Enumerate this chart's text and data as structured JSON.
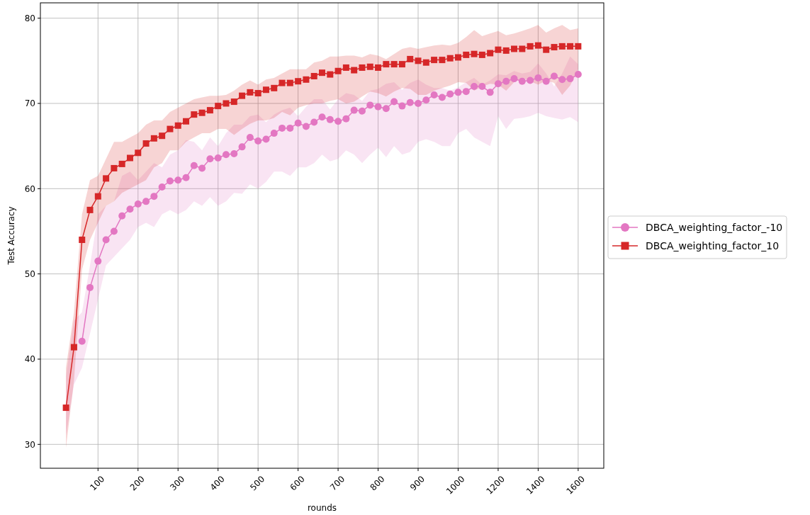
{
  "chart_data": {
    "type": "line",
    "xlabel": "rounds",
    "ylabel": "Test Accuracy",
    "categories": [
      null,
      null,
      null,
      null,
      "100",
      null,
      null,
      null,
      null,
      "200",
      null,
      null,
      null,
      null,
      "300",
      null,
      null,
      null,
      null,
      "400",
      null,
      null,
      null,
      null,
      "500",
      null,
      null,
      null,
      null,
      "600",
      null,
      null,
      null,
      null,
      "700",
      null,
      null,
      null,
      null,
      "800",
      null,
      null,
      null,
      null,
      "900",
      null,
      null,
      null,
      null,
      "1000",
      null,
      null,
      null,
      null,
      "1200",
      null,
      null,
      null,
      null,
      "1400",
      null,
      null,
      null,
      null,
      "1600"
    ],
    "ylim": [
      27.2,
      81.8
    ],
    "yticks": [
      30,
      40,
      50,
      60,
      70,
      80
    ],
    "grid": true,
    "legend": "right",
    "series": [
      {
        "name": "DBCA_weighting_factor_-10",
        "color": "#e377c2",
        "marker": "circle",
        "values": [
          null,
          null,
          42.1,
          48.4,
          51.5,
          54.0,
          55.0,
          56.8,
          57.6,
          58.2,
          58.5,
          59.1,
          60.2,
          60.9,
          61.0,
          61.3,
          62.7,
          62.4,
          63.5,
          63.6,
          64.0,
          64.1,
          64.9,
          66.0,
          65.6,
          65.8,
          66.5,
          67.1,
          67.1,
          67.7,
          67.3,
          67.8,
          68.4,
          68.1,
          67.9,
          68.2,
          69.2,
          69.1,
          69.8,
          69.6,
          69.4,
          70.2,
          69.7,
          70.1,
          70.0,
          70.4,
          71.0,
          70.7,
          71.1,
          71.3,
          71.4,
          72.0,
          72.0,
          71.3,
          72.3,
          72.6,
          72.9,
          72.6,
          72.7,
          73.0,
          72.6,
          73.2,
          72.8,
          72.9,
          73.4
        ],
        "lower": [
          31,
          37,
          39,
          43,
          47,
          51,
          52,
          53,
          54,
          55.5,
          56,
          55.5,
          57,
          57.5,
          57,
          57.5,
          58.5,
          58,
          59,
          58,
          58.5,
          59.5,
          59.4,
          60.5,
          60,
          60.8,
          62,
          62,
          61.5,
          62.5,
          62.5,
          63,
          64,
          63.2,
          63.5,
          64.5,
          64,
          63,
          64,
          64.8,
          63.7,
          65,
          64,
          64.3,
          65.5,
          65.8,
          65.5,
          65,
          65,
          66.5,
          67,
          66,
          65.5,
          65,
          68.5,
          67,
          68.2,
          68.3,
          68.5,
          68.9,
          68.5,
          68.3,
          68.1,
          68.4,
          67.8
        ],
        "upper": [
          38,
          44.5,
          45.5,
          51,
          57,
          58,
          58.5,
          61.5,
          62,
          61,
          62,
          63,
          62.5,
          64,
          64.5,
          65.7,
          65.5,
          64.5,
          66,
          65,
          66.5,
          67.5,
          67.5,
          68.5,
          68.7,
          67.8,
          68.7,
          69.2,
          69.5,
          68.5,
          69.6,
          70.5,
          70.5,
          69.3,
          70.5,
          71.2,
          71,
          70.3,
          71.5,
          71.7,
          72.3,
          72.5,
          71.6,
          72.4,
          72.8,
          72.2,
          71.8,
          71.8,
          71.5,
          71.9,
          72.5,
          73,
          72.2,
          72.7,
          73.4,
          73.3,
          73.8,
          73.5,
          73.7,
          74.7,
          73.5,
          72,
          73.5,
          75.5,
          74.6
        ]
      },
      {
        "name": "DBCA_weighting_factor_10",
        "color": "#d62728",
        "marker": "square",
        "values": [
          34.3,
          41.4,
          54.0,
          57.5,
          59.1,
          61.2,
          62.4,
          62.9,
          63.6,
          64.2,
          65.3,
          65.9,
          66.2,
          67.0,
          67.4,
          67.9,
          68.7,
          68.9,
          69.2,
          69.7,
          70.0,
          70.2,
          70.9,
          71.3,
          71.2,
          71.6,
          71.8,
          72.4,
          72.4,
          72.6,
          72.8,
          73.2,
          73.6,
          73.4,
          73.8,
          74.2,
          73.9,
          74.2,
          74.3,
          74.2,
          74.6,
          74.6,
          74.6,
          75.2,
          75.0,
          74.8,
          75.1,
          75.1,
          75.3,
          75.4,
          75.7,
          75.8,
          75.7,
          75.9,
          76.3,
          76.2,
          76.4,
          76.4,
          76.7,
          76.8,
          76.3,
          76.6,
          76.7,
          76.7,
          76.7
        ],
        "lower": [
          29.6,
          37.5,
          50.5,
          54,
          56,
          58,
          58.5,
          59.5,
          60,
          60.5,
          61,
          62.5,
          63,
          64.5,
          64.5,
          65.5,
          66,
          66.5,
          66.5,
          67,
          67,
          66.3,
          67,
          67.6,
          68,
          68,
          68.3,
          69,
          68.6,
          69.5,
          69.8,
          70,
          70,
          70.3,
          70.5,
          70,
          70.2,
          70.8,
          71.4,
          71.2,
          70.8,
          71.4,
          71.8,
          71.7,
          71,
          71,
          71.5,
          71.8,
          72.1,
          72.5,
          72.4,
          71.5,
          72,
          72.3,
          72.2,
          71.5,
          72.5,
          73,
          72.6,
          72.2,
          72.7,
          72.4,
          71,
          72.1,
          74.0
        ],
        "upper": [
          39,
          45.5,
          57,
          61,
          61.5,
          63.5,
          65.5,
          65.5,
          66,
          66.5,
          67.5,
          68,
          68,
          69,
          69.5,
          70,
          70.5,
          70.7,
          70.9,
          70.9,
          71,
          71.5,
          72.2,
          72.7,
          72.2,
          72.8,
          73,
          73.5,
          74,
          74,
          74,
          74.8,
          75,
          75.5,
          75.5,
          75.6,
          75.6,
          75.4,
          75.8,
          75.6,
          75.2,
          75.8,
          76.4,
          76.6,
          76.4,
          76.6,
          76.8,
          76.9,
          76.8,
          77.1,
          77.8,
          78.6,
          77.9,
          78.2,
          78.5,
          78,
          78.2,
          78.5,
          78.8,
          79.2,
          78.3,
          78.8,
          79.2,
          78.6,
          78.8
        ]
      }
    ]
  }
}
